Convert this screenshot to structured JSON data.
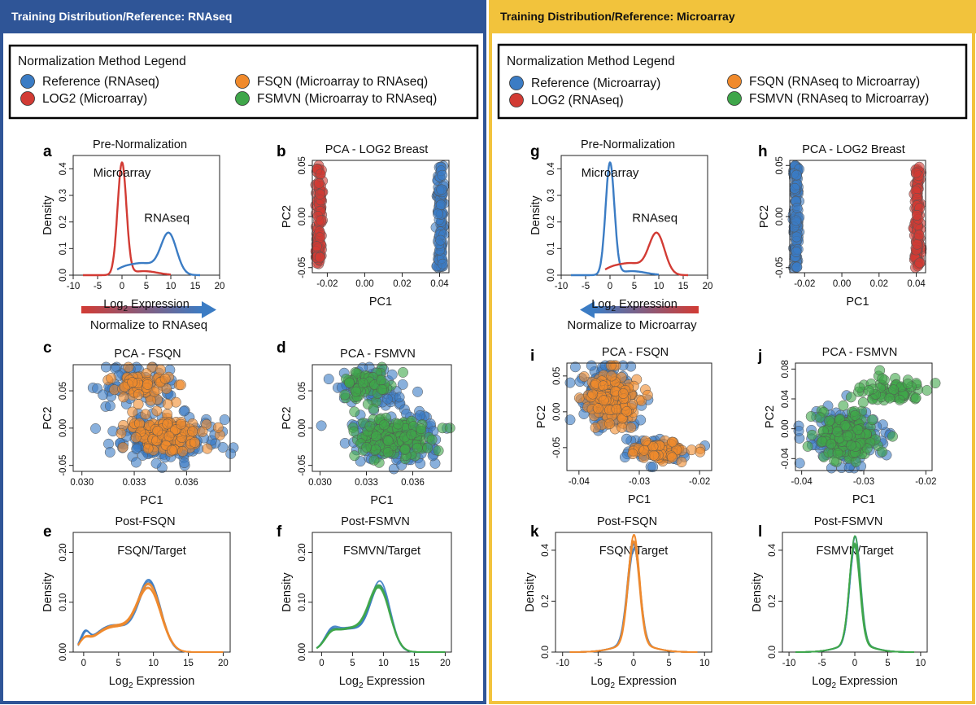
{
  "colors": {
    "blue_panel": "#2f5597",
    "gold_panel": "#f2c33c",
    "reference": "#3b7cc4",
    "log2": "#d23b34",
    "fsqn": "#f08a2c",
    "fsmvn": "#3fa64a"
  },
  "left": {
    "header": "Training Distribution/Reference: RNAseq",
    "legend": {
      "title": "Normalization Method Legend",
      "items": [
        "Reference (RNAseq)",
        "LOG2 (Microarray)",
        "FSQN (Microarray to RNAseq)",
        "FSMVN (Microarray to RNAseq)"
      ]
    },
    "arrow_label": "Normalize to RNAseq"
  },
  "right": {
    "header": "Training Distribution/Reference: Microarray",
    "legend": {
      "title": "Normalization Method Legend",
      "items": [
        "Reference (Microarray)",
        "LOG2 (RNAseq)",
        "FSQN (RNAseq to Microarray)",
        "FSMVN (RNAseq to Microarray)"
      ]
    },
    "arrow_label": "Normalize to Microarray"
  },
  "chart_data": [
    {
      "id": "a",
      "type": "line",
      "title": "Pre-Normalization",
      "xlabel": "Log2 Expression",
      "ylabel": "Density",
      "xlim": [
        -10,
        20
      ],
      "ylim": [
        0,
        0.45
      ],
      "xticks": [
        "-10",
        "-5",
        "0",
        "5",
        "10",
        "15",
        "20"
      ],
      "yticks": [
        "0.0",
        "0.1",
        "0.2",
        "0.3",
        "0.4"
      ],
      "annotations": [
        "Microarray",
        "RNAseq"
      ],
      "series": [
        {
          "name": "Microarray",
          "color": "log2",
          "curve": [
            [
              0,
              0.42,
              0.9
            ],
            [
              4.5,
              0.015,
              2.8
            ]
          ],
          "x": [
            -8,
            10
          ]
        },
        {
          "name": "RNAseq",
          "color": "reference",
          "curve": [
            [
              9.6,
              0.15,
              1.6
            ],
            [
              4,
              0.045,
              3.2
            ],
            [
              0,
              0.01,
              1.5
            ]
          ],
          "x": [
            -1,
            16
          ]
        }
      ]
    },
    {
      "id": "b",
      "type": "scatter",
      "title": "PCA - LOG2 Breast",
      "xlabel": "PC1",
      "ylabel": "PC2",
      "xlim": [
        -0.028,
        0.045
      ],
      "ylim": [
        -0.055,
        0.055
      ],
      "xticks": [
        "-0.02",
        "0.00",
        "0.02",
        "0.04"
      ],
      "yticks": [
        "-0.05",
        "0.00",
        "0.05"
      ],
      "clusters": [
        {
          "name": "LOG2 (Microarray)",
          "color": "log2",
          "center": [
            -0.0245,
            0
          ],
          "spread": [
            0.0009,
            0.05
          ],
          "n": 110,
          "uniform": true
        },
        {
          "name": "Reference (RNAseq)",
          "color": "reference",
          "center": [
            0.0405,
            0
          ],
          "spread": [
            0.0009,
            0.05
          ],
          "n": 110,
          "uniform": true
        }
      ]
    },
    {
      "id": "c",
      "type": "scatter",
      "title": "PCA - FSQN",
      "xlabel": "PC1",
      "ylabel": "PC2",
      "xlim": [
        0.0295,
        0.0385
      ],
      "ylim": [
        -0.058,
        0.085
      ],
      "xticks": [
        "0.030",
        "0.033",
        "0.036"
      ],
      "yticks": [
        "-0.05",
        "0.00",
        "0.05"
      ],
      "clusters": [
        {
          "name": "Reference (RNAseq)",
          "color": "reference",
          "center": [
            0.0333,
            0.055
          ],
          "spread": [
            0.0011,
            0.014
          ],
          "n": 70
        },
        {
          "name": "Reference (RNAseq)",
          "color": "reference",
          "center": [
            0.0348,
            -0.015
          ],
          "spread": [
            0.0014,
            0.016
          ],
          "n": 160
        },
        {
          "name": "FSQN",
          "color": "fsqn",
          "center": [
            0.0334,
            0.058
          ],
          "spread": [
            0.0008,
            0.011
          ],
          "n": 60
        },
        {
          "name": "FSQN",
          "color": "fsqn",
          "center": [
            0.0348,
            -0.012
          ],
          "spread": [
            0.0011,
            0.013
          ],
          "n": 150
        }
      ]
    },
    {
      "id": "d",
      "type": "scatter",
      "title": "PCA - FSMVN",
      "xlabel": "PC1",
      "ylabel": "PC2",
      "xlim": [
        0.0295,
        0.0385
      ],
      "ylim": [
        -0.058,
        0.085
      ],
      "xticks": [
        "0.030",
        "0.033",
        "0.036"
      ],
      "yticks": [
        "-0.05",
        "0.00",
        "0.05"
      ],
      "clusters": [
        {
          "name": "Reference (RNAseq)",
          "color": "reference",
          "center": [
            0.0333,
            0.055
          ],
          "spread": [
            0.0011,
            0.014
          ],
          "n": 70
        },
        {
          "name": "Reference (RNAseq)",
          "color": "reference",
          "center": [
            0.0348,
            -0.015
          ],
          "spread": [
            0.0014,
            0.016
          ],
          "n": 160
        },
        {
          "name": "FSMVN",
          "color": "fsmvn",
          "center": [
            0.0334,
            0.058
          ],
          "spread": [
            0.0009,
            0.011
          ],
          "n": 60
        },
        {
          "name": "FSMVN",
          "color": "fsmvn",
          "center": [
            0.0348,
            -0.012
          ],
          "spread": [
            0.0012,
            0.013
          ],
          "n": 150
        }
      ]
    },
    {
      "id": "e",
      "type": "line",
      "title": "Post-FSQN",
      "xlabel": "Log2 Expression",
      "ylabel": "Density",
      "inner_label": "FSQN/Target",
      "xlim": [
        -1.5,
        21
      ],
      "ylim": [
        0,
        0.24
      ],
      "xticks": [
        "0",
        "5",
        "10",
        "15",
        "20"
      ],
      "yticks": [
        "0.00",
        "0.10",
        "0.20"
      ],
      "series": [
        {
          "name": "Target",
          "color": "reference",
          "curve": [
            [
              9.5,
              0.13,
              1.6
            ],
            [
              6,
              0.03,
              2.2
            ],
            [
              3,
              0.035,
              2.2
            ],
            [
              0.2,
              0.025,
              0.6
            ]
          ],
          "x": [
            -0.8,
            20
          ],
          "copies": 3
        },
        {
          "name": "FSQN",
          "color": "fsqn",
          "curve": [
            [
              9.4,
              0.125,
              1.7
            ],
            [
              6,
              0.03,
              2.2
            ],
            [
              3,
              0.035,
              2.2
            ],
            [
              0.1,
              0.015,
              0.7
            ]
          ],
          "x": [
            -0.8,
            20
          ],
          "copies": 4
        }
      ]
    },
    {
      "id": "f",
      "type": "line",
      "title": "Post-FSMVN",
      "xlabel": "Log2 Expression",
      "ylabel": "Density",
      "inner_label": "FSMVN/Target",
      "xlim": [
        -1.5,
        21
      ],
      "ylim": [
        0,
        0.24
      ],
      "xticks": [
        "0",
        "5",
        "10",
        "15",
        "20"
      ],
      "yticks": [
        "0.00",
        "0.10",
        "0.20"
      ],
      "series": [
        {
          "name": "Target",
          "color": "reference",
          "curve": [
            [
              9.5,
              0.13,
              1.6
            ],
            [
              6,
              0.03,
              2.2
            ],
            [
              3,
              0.03,
              2.2
            ],
            [
              1.5,
              0.02,
              1
            ]
          ],
          "x": [
            -0.8,
            20
          ],
          "copies": 3
        },
        {
          "name": "FSMVN",
          "color": "fsmvn",
          "curve": [
            [
              9.4,
              0.125,
              1.7
            ],
            [
              6,
              0.03,
              2.2
            ],
            [
              3,
              0.03,
              2.2
            ],
            [
              1.5,
              0.015,
              1
            ]
          ],
          "x": [
            -0.8,
            20
          ],
          "copies": 4
        }
      ]
    },
    {
      "id": "g",
      "type": "line",
      "title": "Pre-Normalization",
      "xlabel": "Log2 Expression",
      "ylabel": "Density",
      "xlim": [
        -10,
        20
      ],
      "ylim": [
        0,
        0.45
      ],
      "xticks": [
        "-10",
        "-5",
        "0",
        "5",
        "10",
        "15",
        "20"
      ],
      "yticks": [
        "0.0",
        "0.1",
        "0.2",
        "0.3",
        "0.4"
      ],
      "annotations": [
        "Microarray",
        "RNAseq"
      ],
      "series": [
        {
          "name": "Microarray",
          "color": "reference",
          "curve": [
            [
              0,
              0.42,
              0.9
            ],
            [
              4.5,
              0.015,
              2.8
            ]
          ],
          "x": [
            -8,
            10
          ]
        },
        {
          "name": "RNAseq",
          "color": "log2",
          "curve": [
            [
              9.6,
              0.15,
              1.6
            ],
            [
              4,
              0.045,
              3.2
            ],
            [
              0,
              0.01,
              1.5
            ]
          ],
          "x": [
            -1,
            16
          ]
        }
      ]
    },
    {
      "id": "h",
      "type": "scatter",
      "title": "PCA - LOG2 Breast",
      "xlabel": "PC1",
      "ylabel": "PC2",
      "xlim": [
        -0.028,
        0.045
      ],
      "ylim": [
        -0.055,
        0.055
      ],
      "xticks": [
        "-0.02",
        "0.00",
        "0.02",
        "0.04"
      ],
      "yticks": [
        "-0.05",
        "0.00",
        "0.05"
      ],
      "clusters": [
        {
          "name": "Reference (Microarray)",
          "color": "reference",
          "center": [
            -0.0245,
            0
          ],
          "spread": [
            0.0009,
            0.05
          ],
          "n": 110,
          "uniform": true
        },
        {
          "name": "LOG2 (RNAseq)",
          "color": "log2",
          "center": [
            0.0405,
            0
          ],
          "spread": [
            0.0009,
            0.05
          ],
          "n": 110,
          "uniform": true
        }
      ]
    },
    {
      "id": "i",
      "type": "scatter",
      "title": "PCA - FSQN",
      "xlabel": "PC1",
      "ylabel": "PC2",
      "xlim": [
        -0.042,
        -0.018
      ],
      "ylim": [
        -0.082,
        0.068
      ],
      "xticks": [
        "-0.04",
        "-0.03",
        "-0.02"
      ],
      "yticks": [
        "-0.05",
        "0.00",
        "0.05"
      ],
      "clusters": [
        {
          "name": "Reference (Microarray)",
          "color": "reference",
          "center": [
            -0.035,
            0.02
          ],
          "spread": [
            0.0025,
            0.022
          ],
          "n": 150
        },
        {
          "name": "Reference (Microarray)",
          "color": "reference",
          "center": [
            -0.027,
            -0.055
          ],
          "spread": [
            0.003,
            0.009
          ],
          "n": 60
        },
        {
          "name": "FSQN",
          "color": "fsqn",
          "center": [
            -0.0345,
            0.02
          ],
          "spread": [
            0.002,
            0.019
          ],
          "n": 150
        },
        {
          "name": "FSQN",
          "color": "fsqn",
          "center": [
            -0.0265,
            -0.055
          ],
          "spread": [
            0.0025,
            0.007
          ],
          "n": 70
        }
      ]
    },
    {
      "id": "j",
      "type": "scatter",
      "title": "PCA - FSMVN",
      "xlabel": "PC1",
      "ylabel": "PC2",
      "xlim": [
        -0.041,
        -0.019
      ],
      "ylim": [
        -0.056,
        0.088
      ],
      "xticks": [
        "-0.04",
        "-0.03",
        "-0.02"
      ],
      "yticks": [
        "-0.04",
        "0.00",
        "0.04",
        "0.08"
      ],
      "clusters": [
        {
          "name": "Reference (Microarray)",
          "color": "reference",
          "center": [
            -0.033,
            -0.01
          ],
          "spread": [
            0.0028,
            0.018
          ],
          "n": 170
        },
        {
          "name": "FSMVN",
          "color": "fsmvn",
          "center": [
            -0.0325,
            -0.01
          ],
          "spread": [
            0.0024,
            0.016
          ],
          "n": 170
        },
        {
          "name": "FSMVN",
          "color": "fsmvn",
          "center": [
            -0.0255,
            0.052
          ],
          "spread": [
            0.0025,
            0.008
          ],
          "n": 70
        }
      ]
    },
    {
      "id": "k",
      "type": "line",
      "title": "Post-FSQN",
      "xlabel": "Log2 Expression",
      "ylabel": "Density",
      "inner_label": "FSQN/Target",
      "xlim": [
        -11,
        11
      ],
      "ylim": [
        0,
        0.47
      ],
      "xticks": [
        "-10",
        "-5",
        "0",
        "5",
        "10"
      ],
      "yticks": [
        "0.0",
        "0.2",
        "0.4"
      ],
      "series": [
        {
          "name": "Target",
          "color": "reference",
          "curve": [
            [
              0,
              0.38,
              0.85
            ],
            [
              0,
              0.03,
              2.6
            ]
          ],
          "x": [
            -9,
            9
          ],
          "copies": 3
        },
        {
          "name": "FSQN",
          "color": "fsqn",
          "curve": [
            [
              0,
              0.41,
              0.8
            ],
            [
              0,
              0.03,
              2.6
            ]
          ],
          "x": [
            -9,
            9
          ],
          "copies": 4
        }
      ]
    },
    {
      "id": "l",
      "type": "line",
      "title": "Post-FSMVN",
      "xlabel": "Log2 Expression",
      "ylabel": "Density",
      "inner_label": "FSMVN/Target",
      "xlim": [
        -11,
        11
      ],
      "ylim": [
        0,
        0.47
      ],
      "xticks": [
        "-10",
        "-5",
        "0",
        "5",
        "10"
      ],
      "yticks": [
        "0.0",
        "0.2",
        "0.4"
      ],
      "series": [
        {
          "name": "Target",
          "color": "reference",
          "curve": [
            [
              0,
              0.41,
              0.8
            ],
            [
              0,
              0.03,
              2.6
            ]
          ],
          "x": [
            -9,
            9
          ],
          "copies": 3
        },
        {
          "name": "FSMVN",
          "color": "fsmvn",
          "curve": [
            [
              0,
              0.41,
              0.8
            ],
            [
              0,
              0.03,
              2.6
            ]
          ],
          "x": [
            -9,
            9
          ],
          "copies": 4
        }
      ]
    }
  ]
}
